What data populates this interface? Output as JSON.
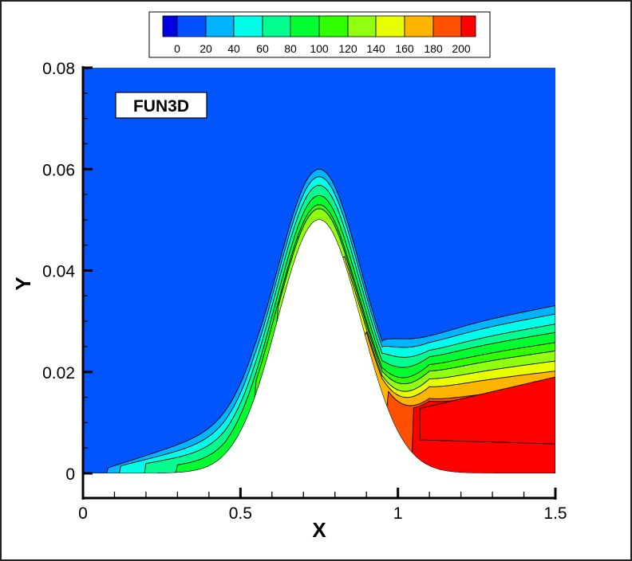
{
  "chart_data": {
    "type": "contour",
    "title": "",
    "annotation": "FUN3D",
    "xlabel": "X",
    "ylabel": "Y",
    "xlim": [
      0,
      1.5
    ],
    "ylim": [
      -0.0045,
      0.08
    ],
    "x_ticks": [
      {
        "value": 0,
        "label": "0"
      },
      {
        "value": 0.5,
        "label": "0.5"
      },
      {
        "value": 1,
        "label": "1"
      },
      {
        "value": 1.5,
        "label": "1.5"
      }
    ],
    "y_ticks": [
      {
        "value": 0,
        "label": "0"
      },
      {
        "value": 0.02,
        "label": "0.02"
      },
      {
        "value": 0.04,
        "label": "0.04"
      },
      {
        "value": 0.06,
        "label": "0.06"
      },
      {
        "value": 0.08,
        "label": "0.08"
      }
    ],
    "x_minor_step": 0.1,
    "y_minor_step": 0.005,
    "grid": false,
    "legend": {
      "position": "top",
      "levels": [
        "0",
        "20",
        "40",
        "60",
        "80",
        "100",
        "120",
        "140",
        "160",
        "180",
        "200"
      ],
      "colors": [
        "#0000e0",
        "#0050ff",
        "#00b4ff",
        "#00ffe8",
        "#00ff90",
        "#00ff30",
        "#30ff00",
        "#90ff10",
        "#e8ff00",
        "#ffb400",
        "#ff5000",
        "#ff0000"
      ]
    },
    "geometry": {
      "description": "Gaussian hump on lower wall",
      "hump_center_x": 0.75,
      "hump_height": 0.05,
      "hump_width": 0.186
    },
    "field_summary": {
      "background_level": "0-20",
      "max_level": ">200",
      "max_region": "x 1.05-1.5, y 0.006-0.019 (downstream of hump)",
      "boundary_layer_peak_height": 0.06,
      "wake_top_at_x1.5": 0.028
    }
  },
  "colors": {
    "background": "#0055ff",
    "body": "#ffffff",
    "contour_line": "#000000"
  }
}
